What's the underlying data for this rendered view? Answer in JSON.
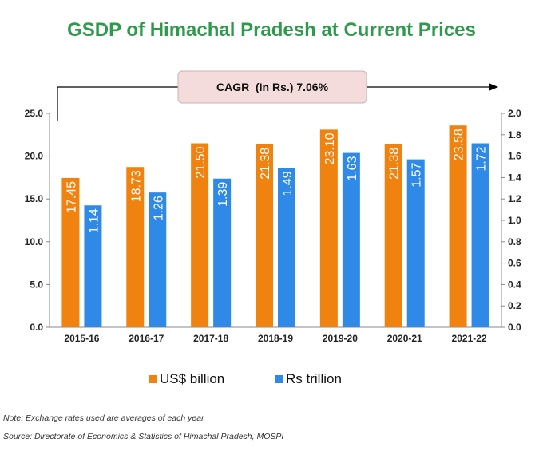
{
  "title": "GSDP of Himachal Pradesh at Current Prices",
  "cagr_label": "CAGR  (In Rs.) 7.06%",
  "note": "Note: Exchange rates used are averages of each year",
  "source": "Source: Directorate of Economics & Statistics of Himachal Pradesh, MOSPI",
  "colors": {
    "usd": "#f0830f",
    "rs": "#2e8ae6",
    "title": "#2e9a4b",
    "cagr_box": "#f4dcdc"
  },
  "chart_data": {
    "type": "bar",
    "categories": [
      "2015-16",
      "2016-17",
      "2017-18",
      "2018-19",
      "2019-20",
      "2020-21",
      "2021-22"
    ],
    "series": [
      {
        "name": "US$ billion",
        "axis": "left",
        "values": [
          17.45,
          18.73,
          21.5,
          21.38,
          23.1,
          21.38,
          23.58
        ]
      },
      {
        "name": "Rs trillion",
        "axis": "right",
        "values": [
          1.14,
          1.26,
          1.39,
          1.49,
          1.63,
          1.57,
          1.72
        ]
      }
    ],
    "value_labels": {
      "left": [
        "17.45",
        "18.73",
        "21.50",
        "21.38",
        "23.10",
        "21.38",
        "23.58"
      ],
      "right": [
        "1.14",
        "1.26",
        "1.39",
        "1.49",
        "1.63",
        "1.57",
        "1.72"
      ]
    },
    "y_left": {
      "min": 0,
      "max": 25,
      "ticks": [
        "0.0",
        "5.0",
        "10.0",
        "15.0",
        "20.0",
        "25.0"
      ]
    },
    "y_right": {
      "min": 0,
      "max": 2.0,
      "ticks": [
        "0.0",
        "0.2",
        "0.4",
        "0.6",
        "0.8",
        "1.0",
        "1.2",
        "1.4",
        "1.6",
        "1.8",
        "2.0"
      ]
    },
    "grid": false,
    "legend_position": "bottom"
  }
}
